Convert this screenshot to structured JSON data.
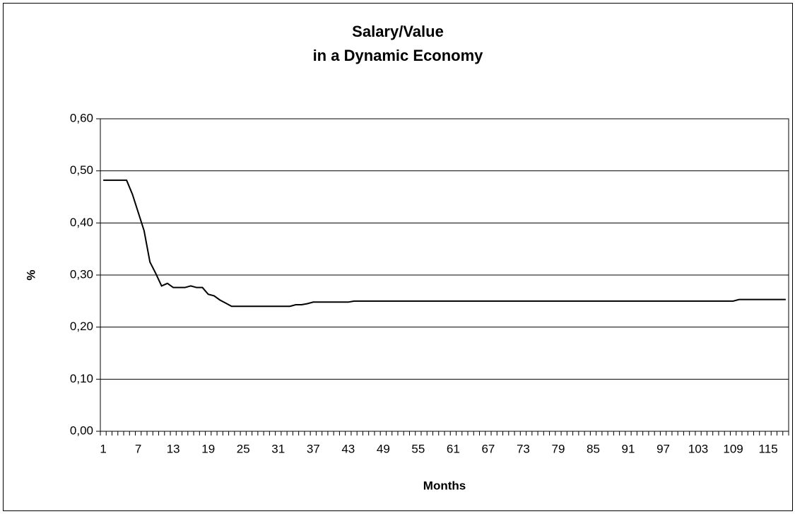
{
  "chart_data": {
    "type": "line",
    "title_lines": [
      "Salary/Value",
      "in a Dynamic Economy"
    ],
    "x_label": "Months",
    "y_label": "%",
    "categories": [
      "1",
      null,
      null,
      null,
      null,
      null,
      "7",
      null,
      null,
      null,
      null,
      null,
      "13",
      null,
      null,
      null,
      null,
      null,
      "19",
      null,
      null,
      null,
      null,
      null,
      "25",
      null,
      null,
      null,
      null,
      null,
      "31",
      null,
      null,
      null,
      null,
      null,
      "37",
      null,
      null,
      null,
      null,
      null,
      "43",
      null,
      null,
      null,
      null,
      null,
      "49",
      null,
      null,
      null,
      null,
      null,
      "55",
      null,
      null,
      null,
      null,
      null,
      "61",
      null,
      null,
      null,
      null,
      null,
      "67",
      null,
      null,
      null,
      null,
      null,
      "73",
      null,
      null,
      null,
      null,
      null,
      "79",
      null,
      null,
      null,
      null,
      null,
      "85",
      null,
      null,
      null,
      null,
      null,
      "91",
      null,
      null,
      null,
      null,
      null,
      "97",
      null,
      null,
      null,
      null,
      null,
      "103",
      null,
      null,
      null,
      null,
      null,
      "109",
      null,
      null,
      null,
      null,
      null,
      "115",
      null,
      null,
      null
    ],
    "values": [
      0.482,
      0.482,
      0.482,
      0.482,
      0.482,
      0.455,
      0.42,
      0.385,
      0.325,
      0.303,
      0.279,
      0.284,
      0.276,
      0.276,
      0.276,
      0.279,
      0.276,
      0.276,
      0.263,
      0.26,
      0.252,
      0.246,
      0.24,
      0.24,
      0.24,
      0.24,
      0.24,
      0.24,
      0.24,
      0.24,
      0.24,
      0.24,
      0.24,
      0.243,
      0.243,
      0.245,
      0.248,
      0.248,
      0.248,
      0.248,
      0.248,
      0.248,
      0.248,
      0.25,
      0.25,
      0.25,
      0.25,
      0.25,
      0.25,
      0.25,
      0.25,
      0.25,
      0.25,
      0.25,
      0.25,
      0.25,
      0.25,
      0.25,
      0.25,
      0.25,
      0.25,
      0.25,
      0.25,
      0.25,
      0.25,
      0.25,
      0.25,
      0.25,
      0.25,
      0.25,
      0.25,
      0.25,
      0.25,
      0.25,
      0.25,
      0.25,
      0.25,
      0.25,
      0.25,
      0.25,
      0.25,
      0.25,
      0.25,
      0.25,
      0.25,
      0.25,
      0.25,
      0.25,
      0.25,
      0.25,
      0.25,
      0.25,
      0.25,
      0.25,
      0.25,
      0.25,
      0.25,
      0.25,
      0.25,
      0.25,
      0.25,
      0.25,
      0.25,
      0.25,
      0.25,
      0.25,
      0.25,
      0.25,
      0.25,
      0.253,
      0.253,
      0.253,
      0.253,
      0.253,
      0.253,
      0.253,
      0.253,
      0.253
    ],
    "color": "#000000",
    "ylim": [
      0,
      0.6
    ],
    "yticks": [
      {
        "value": 0,
        "label": "0,00"
      },
      {
        "value": 0.1,
        "label": "0,10"
      },
      {
        "value": 0.2,
        "label": "0,20"
      },
      {
        "value": 0.3,
        "label": "0,30"
      },
      {
        "value": 0.4,
        "label": "0,40"
      },
      {
        "value": 0.5,
        "label": "0,50"
      },
      {
        "value": 0.6,
        "label": "0,60"
      }
    ],
    "grid": true
  }
}
